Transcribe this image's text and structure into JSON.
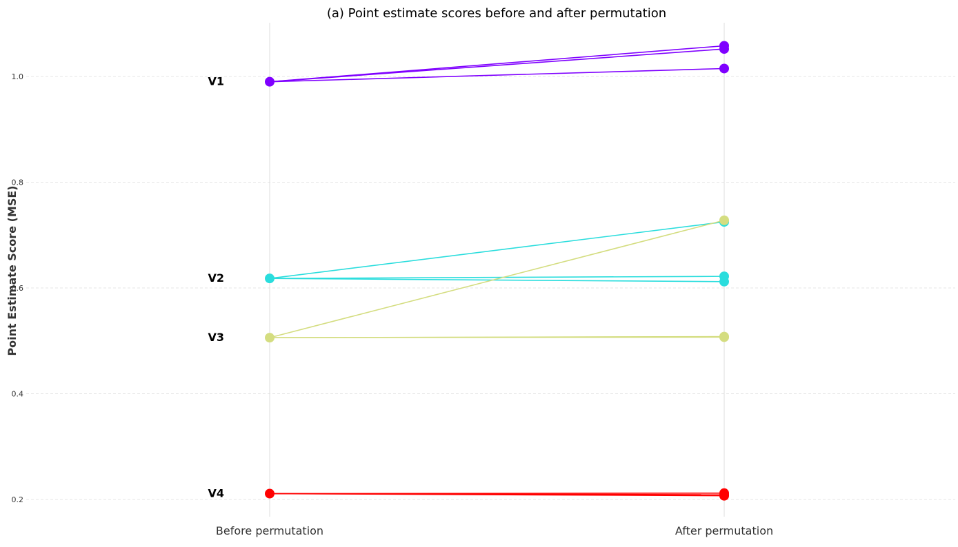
{
  "chart_data": {
    "type": "line",
    "title": "(a) Point estimate scores before and after permutation",
    "xlabel": "",
    "ylabel": "Point Estimate Score (MSE)",
    "categories": [
      "Before permutation",
      "After permutation"
    ],
    "ylim": [
      0.17,
      1.1
    ],
    "yticks": [
      "0.2",
      "0.4",
      "0.6",
      "0.8",
      "1.0"
    ],
    "grid": true,
    "groups": [
      {
        "label": "V1",
        "color": "#7f00ff",
        "before": 0.99,
        "after": [
          1.058,
          1.052,
          1.015
        ]
      },
      {
        "label": "V2",
        "color": "#2adddd",
        "before": 0.618,
        "after": [
          0.725,
          0.622,
          0.612
        ]
      },
      {
        "label": "V3",
        "color": "#d4dd80",
        "before": 0.506,
        "after": [
          0.728,
          0.508,
          0.507
        ]
      },
      {
        "label": "V4",
        "color": "#ff0000",
        "before": 0.211,
        "after": [
          0.212,
          0.209,
          0.207
        ]
      }
    ]
  }
}
